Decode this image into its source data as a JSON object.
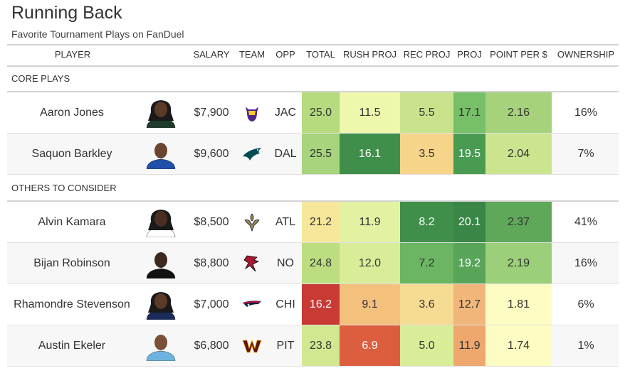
{
  "title": "Running Back",
  "subtitle": "Favorite Tournament Plays on FanDuel",
  "columns": {
    "player": "PLAYER",
    "salary": "SALARY",
    "team": "TEAM",
    "opp": "OPP",
    "total": "TOTAL",
    "rush_proj": "RUSH PROJ",
    "rec_proj": "REC PROJ",
    "proj": "PROJ",
    "ppd": "POINT PER $",
    "ownership": "OWNERSHIP"
  },
  "groups": [
    {
      "label": "CORE PLAYS",
      "rows": [
        {
          "player": "Aaron Jones",
          "salary": "$7,900",
          "team_icon": "vikings-logo",
          "opp": "JAC",
          "total": "25.0",
          "rush_proj": "11.5",
          "rec_proj": "5.5",
          "proj": "17.1",
          "ppd": "2.16",
          "ownership": "16%",
          "colors": {
            "total": "#b5db7e",
            "rush_proj": "#eef7ac",
            "rec_proj": "#c9e38c",
            "proj": "#78bf6a",
            "ppd": "#a5d27a"
          }
        },
        {
          "player": "Saquon Barkley",
          "salary": "$9,600",
          "team_icon": "eagles-logo",
          "opp": "DAL",
          "total": "25.5",
          "rush_proj": "16.1",
          "rec_proj": "3.5",
          "proj": "19.5",
          "ppd": "2.04",
          "ownership": "7%",
          "colors": {
            "total": "#a7d47c",
            "rush_proj": "#3f8f4a",
            "rec_proj": "#f6d58a",
            "proj": "#4a9b52",
            "ppd": "#cbe58f"
          }
        }
      ]
    },
    {
      "label": "OTHERS TO CONSIDER",
      "rows": [
        {
          "player": "Alvin Kamara",
          "salary": "$8,500",
          "team_icon": "saints-logo",
          "opp": "ATL",
          "total": "21.2",
          "rush_proj": "11.9",
          "rec_proj": "8.2",
          "proj": "20.1",
          "ppd": "2.37",
          "ownership": "41%",
          "colors": {
            "total": "#f6e79a",
            "rush_proj": "#e3f1a3",
            "rec_proj": "#3f8f4a",
            "proj": "#3a8646",
            "ppd": "#5fa85a"
          }
        },
        {
          "player": "Bijan Robinson",
          "salary": "$8,800",
          "team_icon": "falcons-logo",
          "opp": "NO",
          "total": "24.8",
          "rush_proj": "12.0",
          "rec_proj": "7.2",
          "proj": "19.2",
          "ppd": "2.19",
          "ownership": "16%",
          "colors": {
            "total": "#bcdd80",
            "rush_proj": "#d9ed99",
            "rec_proj": "#6cb563",
            "proj": "#58a55a",
            "ppd": "#9ccf79"
          }
        },
        {
          "player": "Rhamondre Stevenson",
          "salary": "$7,000",
          "team_icon": "patriots-logo",
          "opp": "CHI",
          "total": "16.2",
          "rush_proj": "9.1",
          "rec_proj": "3.6",
          "proj": "12.7",
          "ppd": "1.81",
          "ownership": "6%",
          "colors": {
            "total": "#c93a35",
            "rush_proj": "#f4c07e",
            "rec_proj": "#f6dc92",
            "proj": "#f1b77a",
            "ppd": "#fdfcc2"
          }
        },
        {
          "player": "Austin Ekeler",
          "salary": "$6,800",
          "team_icon": "commanders-logo",
          "opp": "PIT",
          "total": "23.8",
          "rush_proj": "6.9",
          "rec_proj": "5.0",
          "proj": "11.9",
          "ppd": "1.74",
          "ownership": "1%",
          "colors": {
            "total": "#d2e890",
            "rush_proj": "#dd5e3f",
            "rec_proj": "#d9ed99",
            "proj": "#eea86e",
            "ppd": "#fdfcc2"
          }
        }
      ]
    }
  ],
  "chart_data": {
    "type": "table",
    "title": "Running Back",
    "subtitle": "Favorite Tournament Plays on FanDuel",
    "columns": [
      "PLAYER",
      "SALARY",
      "TEAM",
      "OPP",
      "TOTAL",
      "RUSH PROJ",
      "REC PROJ",
      "PROJ",
      "POINT PER $",
      "OWNERSHIP"
    ],
    "rows": [
      [
        "Aaron Jones",
        "$7,900",
        "",
        "JAC",
        25.0,
        11.5,
        5.5,
        17.1,
        2.16,
        "16%"
      ],
      [
        "Saquon Barkley",
        "$9,600",
        "",
        "DAL",
        25.5,
        16.1,
        3.5,
        19.5,
        2.04,
        "7%"
      ],
      [
        "Alvin Kamara",
        "$8,500",
        "",
        "ATL",
        21.2,
        11.9,
        8.2,
        20.1,
        2.37,
        "41%"
      ],
      [
        "Bijan Robinson",
        "$8,800",
        "",
        "NO",
        24.8,
        12.0,
        7.2,
        19.2,
        2.19,
        "16%"
      ],
      [
        "Rhamondre Stevenson",
        "$7,000",
        "",
        "CHI",
        16.2,
        9.1,
        3.6,
        12.7,
        1.81,
        "6%"
      ],
      [
        "Austin Ekeler",
        "$6,800",
        "",
        "PIT",
        23.8,
        6.9,
        5.0,
        11.9,
        1.74,
        "1%"
      ]
    ]
  }
}
